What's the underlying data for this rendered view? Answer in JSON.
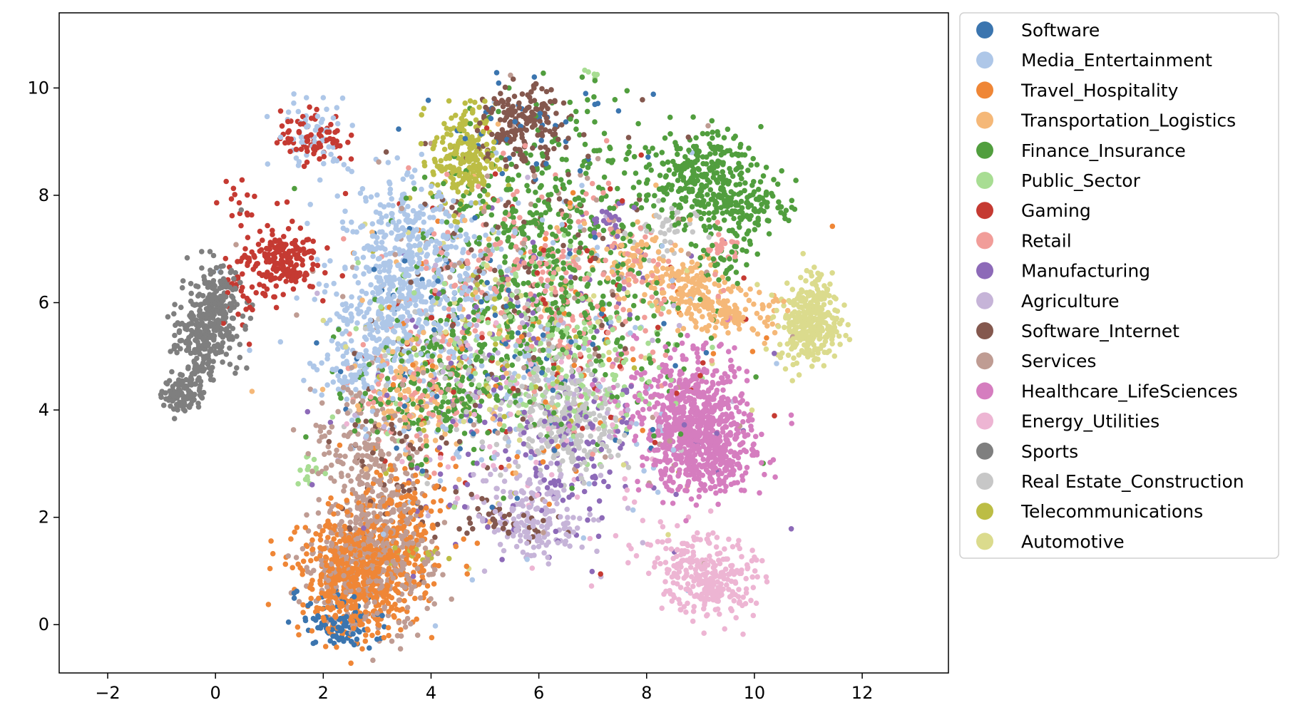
{
  "chart_data": {
    "type": "scatter",
    "title": "",
    "xlabel": "",
    "ylabel": "",
    "xlim": [
      -2.9,
      13.6
    ],
    "ylim": [
      -0.9,
      11.4
    ],
    "xticks": [
      -2,
      0,
      2,
      4,
      6,
      8,
      10,
      12
    ],
    "yticks": [
      0,
      2,
      4,
      6,
      8,
      10
    ],
    "grid": false,
    "legend_position": "outside-right",
    "series": [
      {
        "name": "Software",
        "color": "#3b75af",
        "clusters": [
          [
            2.3,
            -0.1,
            0.35,
            0.15,
            60
          ],
          [
            2.2,
            0.2,
            0.4,
            0.3,
            40
          ],
          [
            6.0,
            9.3,
            0.8,
            0.5,
            40
          ],
          [
            5.5,
            5.5,
            1.8,
            1.6,
            80
          ]
        ]
      },
      {
        "name": "Media_Entertainment",
        "color": "#aec7e8",
        "clusters": [
          [
            3.2,
            6.0,
            0.55,
            0.9,
            420
          ],
          [
            3.6,
            7.3,
            0.4,
            0.5,
            120
          ],
          [
            1.8,
            9.2,
            0.35,
            0.35,
            60
          ],
          [
            4.5,
            6.5,
            0.6,
            0.8,
            120
          ],
          [
            2.5,
            4.8,
            0.4,
            0.3,
            60
          ],
          [
            5.5,
            5.0,
            1.8,
            1.8,
            160
          ]
        ]
      },
      {
        "name": "Travel_Hospitality",
        "color": "#ef8636",
        "clusters": [
          [
            2.7,
            0.9,
            0.55,
            0.55,
            650
          ],
          [
            3.5,
            2.1,
            0.5,
            0.5,
            120
          ],
          [
            5.5,
            5.5,
            1.8,
            1.6,
            60
          ]
        ]
      },
      {
        "name": "Transportation_Logistics",
        "color": "#f5b878",
        "clusters": [
          [
            8.7,
            6.3,
            0.35,
            0.3,
            130
          ],
          [
            9.6,
            5.8,
            0.4,
            0.2,
            120
          ],
          [
            7.7,
            6.8,
            0.3,
            0.3,
            60
          ],
          [
            3.5,
            4.2,
            0.5,
            0.5,
            80
          ],
          [
            5.5,
            5.5,
            1.8,
            1.6,
            60
          ]
        ]
      },
      {
        "name": "Finance_Insurance",
        "color": "#519e3e",
        "clusters": [
          [
            9.0,
            8.3,
            0.55,
            0.45,
            320
          ],
          [
            10.0,
            7.8,
            0.4,
            0.2,
            80
          ],
          [
            9.5,
            6.9,
            0.3,
            0.3,
            40
          ],
          [
            6.2,
            7.3,
            1.0,
            1.2,
            380
          ],
          [
            4.0,
            4.4,
            0.7,
            0.6,
            200
          ],
          [
            6.2,
            5.6,
            1.4,
            1.2,
            200
          ]
        ]
      },
      {
        "name": "Public_Sector",
        "color": "#a8dd93",
        "clusters": [
          [
            5.8,
            5.2,
            1.3,
            1.0,
            160
          ],
          [
            6.8,
            4.5,
            0.6,
            0.6,
            60
          ],
          [
            1.7,
            2.9,
            0.12,
            0.2,
            15
          ],
          [
            7.0,
            10.2,
            0.1,
            0.1,
            5
          ]
        ]
      },
      {
        "name": "Gaming",
        "color": "#c53a32",
        "clusters": [
          [
            1.2,
            6.8,
            0.35,
            0.3,
            180
          ],
          [
            1.8,
            9.1,
            0.3,
            0.25,
            80
          ],
          [
            0.6,
            6.3,
            0.3,
            0.35,
            40
          ],
          [
            0.5,
            7.9,
            0.25,
            0.2,
            15
          ],
          [
            6.0,
            5.8,
            1.8,
            1.6,
            80
          ]
        ]
      },
      {
        "name": "Retail",
        "color": "#f19d99",
        "clusters": [
          [
            6.2,
            6.3,
            1.3,
            1.0,
            300
          ],
          [
            9.4,
            7.0,
            0.2,
            0.15,
            20
          ],
          [
            3.5,
            4.0,
            0.6,
            0.6,
            60
          ]
        ]
      },
      {
        "name": "Manufacturing",
        "color": "#8d6ab8",
        "clusters": [
          [
            5.9,
            4.2,
            1.5,
            1.4,
            180
          ],
          [
            7.3,
            7.5,
            0.2,
            0.2,
            25
          ],
          [
            6.5,
            3.0,
            0.6,
            0.6,
            60
          ]
        ]
      },
      {
        "name": "Agriculture",
        "color": "#c6b4d8",
        "clusters": [
          [
            6.0,
            1.8,
            0.45,
            0.3,
            130
          ],
          [
            5.6,
            2.5,
            0.6,
            0.4,
            60
          ],
          [
            5.5,
            4.5,
            1.6,
            1.4,
            80
          ]
        ]
      },
      {
        "name": "Software_Internet",
        "color": "#84584e",
        "clusters": [
          [
            5.7,
            9.3,
            0.35,
            0.35,
            160
          ],
          [
            5.4,
            2.0,
            0.5,
            0.2,
            40
          ],
          [
            5.8,
            7.0,
            1.2,
            1.5,
            120
          ],
          [
            3.4,
            3.3,
            0.6,
            1.0,
            60
          ]
        ]
      },
      {
        "name": "Services",
        "color": "#bf9c93",
        "clusters": [
          [
            2.8,
            1.1,
            0.6,
            0.6,
            380
          ],
          [
            3.0,
            2.4,
            0.5,
            0.6,
            180
          ],
          [
            2.8,
            3.6,
            0.5,
            0.5,
            100
          ],
          [
            5.8,
            5.5,
            1.8,
            1.8,
            120
          ]
        ]
      },
      {
        "name": "Healthcare_LifeSciences",
        "color": "#d57dbf",
        "clusters": [
          [
            8.9,
            3.7,
            0.5,
            0.6,
            700
          ],
          [
            9.3,
            3.1,
            0.4,
            0.3,
            120
          ],
          [
            7.4,
            4.5,
            0.6,
            0.6,
            40
          ]
        ]
      },
      {
        "name": "Energy_Utilities",
        "color": "#edb5d3",
        "clusters": [
          [
            9.2,
            0.8,
            0.4,
            0.35,
            240
          ],
          [
            8.6,
            1.3,
            0.4,
            0.3,
            60
          ],
          [
            5.8,
            3.5,
            1.4,
            1.2,
            60
          ]
        ]
      },
      {
        "name": "Sports",
        "color": "#7f7f7f",
        "clusters": [
          [
            0.0,
            5.8,
            0.25,
            0.45,
            260
          ],
          [
            -0.4,
            5.4,
            0.2,
            0.3,
            100
          ],
          [
            -0.6,
            4.3,
            0.18,
            0.18,
            100
          ],
          [
            -0.3,
            4.8,
            0.15,
            0.2,
            30
          ]
        ]
      },
      {
        "name": "Real Estate_Construction",
        "color": "#c7c7c7",
        "clusters": [
          [
            6.6,
            3.8,
            0.45,
            0.5,
            260
          ],
          [
            5.0,
            4.6,
            1.2,
            1.0,
            100
          ],
          [
            8.3,
            7.3,
            0.3,
            0.3,
            40
          ]
        ]
      },
      {
        "name": "Telecommunications",
        "color": "#bcbd45",
        "clusters": [
          [
            4.6,
            8.7,
            0.3,
            0.5,
            220
          ],
          [
            5.2,
            5.0,
            1.2,
            1.0,
            60
          ],
          [
            3.8,
            1.3,
            0.3,
            0.1,
            15
          ]
        ]
      },
      {
        "name": "Automotive",
        "color": "#dbdb8d",
        "clusters": [
          [
            11.0,
            5.6,
            0.28,
            0.35,
            300
          ],
          [
            11.2,
            6.2,
            0.15,
            0.2,
            40
          ],
          [
            5.0,
            5.5,
            1.5,
            1.5,
            60
          ]
        ]
      }
    ]
  }
}
